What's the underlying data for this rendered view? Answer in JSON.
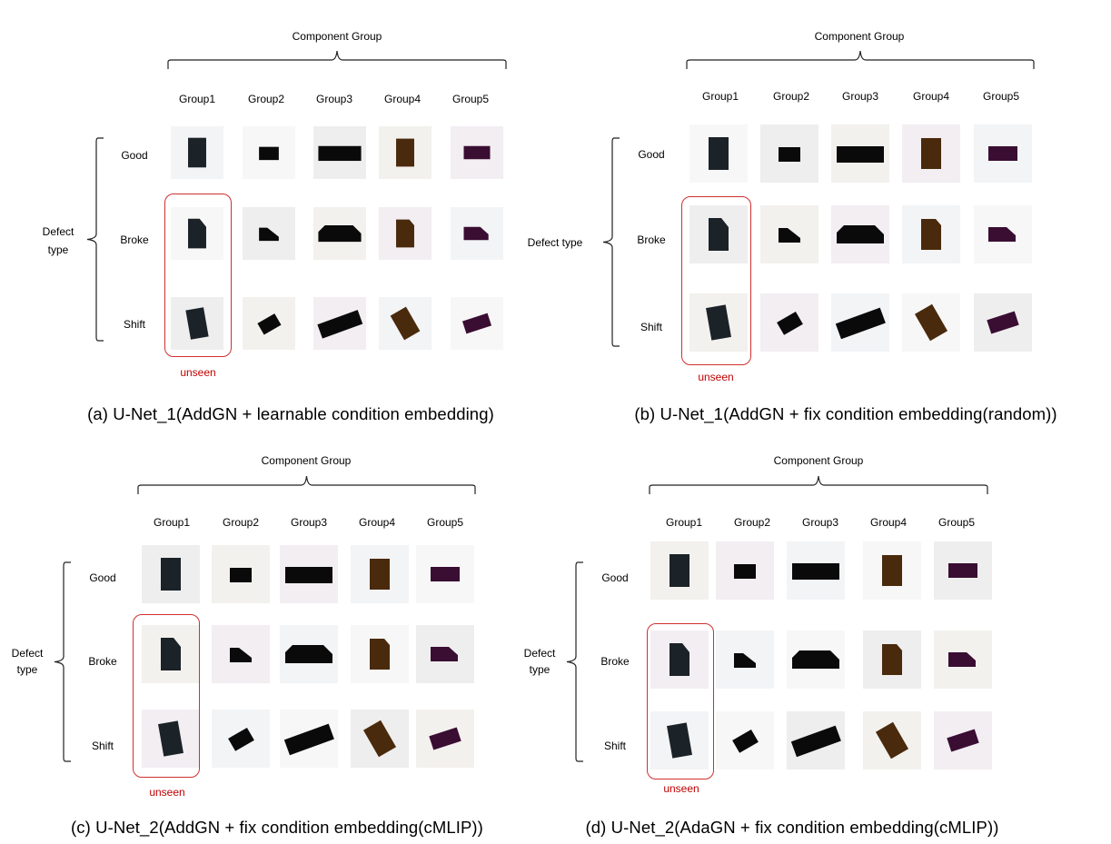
{
  "panels": [
    {
      "id": "a",
      "component_group_label": "Component Group",
      "groups": [
        "Group1",
        "Group2",
        "Group3",
        "Group4",
        "Group5"
      ],
      "defect_type_label": [
        "Defect",
        "type"
      ],
      "rows": [
        "Good",
        "Broke",
        "Shift"
      ],
      "unseen_label": "unseen",
      "caption": "(a) U-Net_1(AddGN  + learnable condition embedding)"
    },
    {
      "id": "b",
      "component_group_label": "Component Group",
      "groups": [
        "Group1",
        "Group2",
        "Group3",
        "Group4",
        "Group5"
      ],
      "defect_type_label": [
        "Defect type"
      ],
      "rows": [
        "Good",
        "Broke",
        "Shift"
      ],
      "unseen_label": "unseen",
      "caption": "(b) U-Net_1(AddGN + fix condition embedding(random))"
    },
    {
      "id": "c",
      "component_group_label": "Component Group",
      "groups": [
        "Group1",
        "Group2",
        "Group3",
        "Group4",
        "Group5"
      ],
      "defect_type_label": [
        "Defect",
        "type"
      ],
      "rows": [
        "Good",
        "Broke",
        "Shift"
      ],
      "unseen_label": "unseen",
      "caption": "(c) U-Net_2(AddGN  + fix condition embedding(cMLIP))"
    },
    {
      "id": "d",
      "component_group_label": "Component Group",
      "groups": [
        "Group1",
        "Group2",
        "Group3",
        "Group4",
        "Group5"
      ],
      "defect_type_label": [
        "Defect",
        "type"
      ],
      "rows": [
        "Good",
        "Broke",
        "Shift"
      ],
      "unseen_label": "unseen",
      "caption": "(d) U-Net_2(AdaGN  + fix condition embedding(cMLIP))"
    }
  ],
  "colors": {
    "group1": "#1b2228",
    "group2": "#0a0a0a",
    "group3": "#0a0a0a",
    "group4": "#4a2a0c",
    "group5": "#3a0d33",
    "unseen_box": "#d03030",
    "unseen_text": "#c00000"
  }
}
